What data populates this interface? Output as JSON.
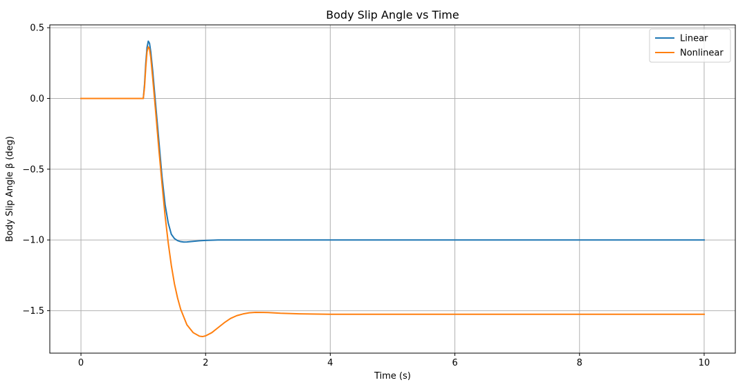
{
  "chart_data": {
    "type": "line",
    "title": "Body Slip Angle vs Time",
    "xlabel": "Time (s)",
    "ylabel": "Body Slip Angle β (deg)",
    "xlim": [
      -0.5,
      10.5
    ],
    "ylim": [
      -1.8,
      0.52
    ],
    "xticks": [
      0,
      2,
      4,
      6,
      8,
      10
    ],
    "xtick_labels": [
      "0",
      "2",
      "4",
      "6",
      "8",
      "10"
    ],
    "yticks": [
      0.5,
      0.0,
      -0.5,
      -1.0,
      -1.5
    ],
    "ytick_labels": [
      "0.5",
      "0.0",
      "−0.5",
      "−1.0",
      "−1.5"
    ],
    "grid": true,
    "legend_position": "top-right",
    "series": [
      {
        "name": "Linear",
        "color": "#1f77b4",
        "x": [
          0,
          0.5,
          1.0,
          1.02,
          1.04,
          1.06,
          1.08,
          1.1,
          1.12,
          1.15,
          1.2,
          1.25,
          1.3,
          1.35,
          1.4,
          1.45,
          1.5,
          1.55,
          1.6,
          1.65,
          1.7,
          1.8,
          1.9,
          2.0,
          2.2,
          2.5,
          3.0,
          4.0,
          6.0,
          8.0,
          10.0
        ],
        "y": [
          0,
          0,
          0,
          0.1,
          0.25,
          0.36,
          0.405,
          0.39,
          0.33,
          0.2,
          -0.05,
          -0.3,
          -0.55,
          -0.75,
          -0.88,
          -0.96,
          -0.99,
          -1.005,
          -1.012,
          -1.015,
          -1.014,
          -1.01,
          -1.006,
          -1.003,
          -1.0,
          -1.0,
          -1.0,
          -1.0,
          -1.0,
          -1.0,
          -1.0
        ]
      },
      {
        "name": "Nonlinear",
        "color": "#ff7f0e",
        "x": [
          0,
          0.5,
          1.0,
          1.02,
          1.04,
          1.06,
          1.08,
          1.1,
          1.12,
          1.15,
          1.2,
          1.25,
          1.3,
          1.35,
          1.4,
          1.45,
          1.5,
          1.55,
          1.6,
          1.7,
          1.8,
          1.9,
          1.95,
          2.0,
          2.1,
          2.2,
          2.3,
          2.4,
          2.5,
          2.6,
          2.7,
          2.8,
          3.0,
          3.2,
          3.5,
          4.0,
          5.0,
          6.0,
          8.0,
          10.0
        ],
        "y": [
          0,
          0,
          0,
          0.08,
          0.22,
          0.33,
          0.365,
          0.35,
          0.29,
          0.15,
          -0.1,
          -0.36,
          -0.6,
          -0.83,
          -1.02,
          -1.18,
          -1.31,
          -1.41,
          -1.49,
          -1.6,
          -1.655,
          -1.68,
          -1.683,
          -1.678,
          -1.655,
          -1.62,
          -1.585,
          -1.555,
          -1.535,
          -1.523,
          -1.515,
          -1.512,
          -1.513,
          -1.518,
          -1.522,
          -1.525,
          -1.525,
          -1.525,
          -1.525,
          -1.525
        ]
      }
    ]
  }
}
